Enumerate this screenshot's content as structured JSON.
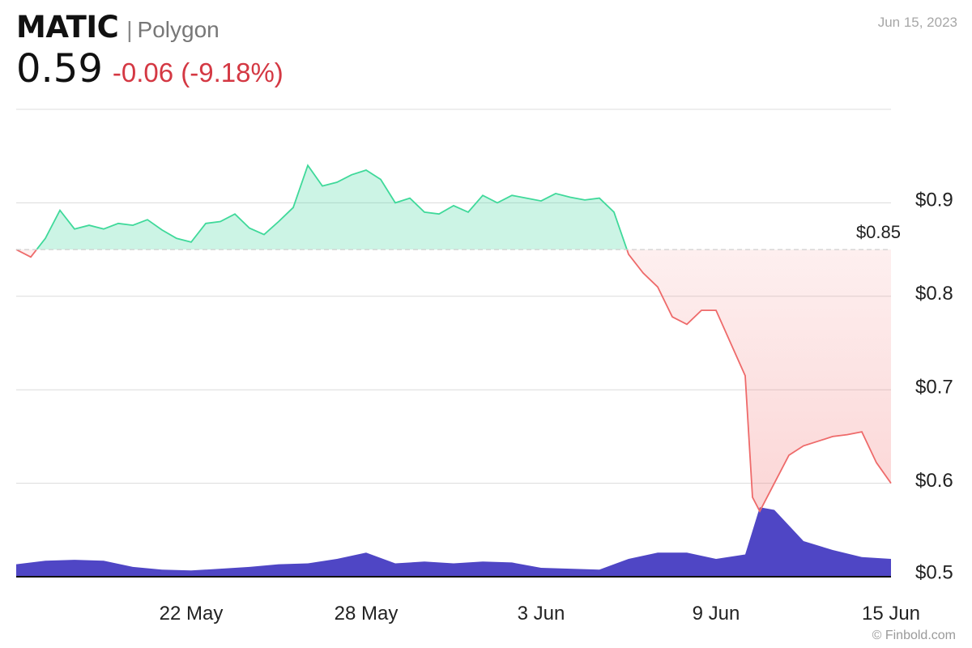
{
  "header": {
    "symbol": "MATIC",
    "separator": "|",
    "name": "Polygon",
    "price": "0.59",
    "change": "-0.06 (-9.18%)",
    "date": "Jun 15, 2023",
    "credit": "© Finbold.com"
  },
  "chart_data": {
    "type": "line",
    "ylim": [
      0.5,
      1.0
    ],
    "y_ticks": [
      {
        "value": 0.9,
        "label": "$0.9"
      },
      {
        "value": 0.8,
        "label": "$0.8"
      },
      {
        "value": 0.7,
        "label": "$0.7"
      },
      {
        "value": 0.6,
        "label": "$0.6"
      },
      {
        "value": 0.5,
        "label": "$0.5"
      }
    ],
    "x_range": [
      "2023-05-16",
      "2023-06-15"
    ],
    "x_ticks": [
      {
        "date": "2023-05-22",
        "label": "22 May"
      },
      {
        "date": "2023-05-28",
        "label": "28 May"
      },
      {
        "date": "2023-06-03",
        "label": "3 Jun"
      },
      {
        "date": "2023-06-09",
        "label": "9 Jun"
      },
      {
        "date": "2023-06-15",
        "label": "15 Jun"
      }
    ],
    "reference": {
      "value": 0.85,
      "label": "$0.85"
    },
    "price": {
      "x": [
        "2023-05-16",
        "2023-05-16 12:00",
        "2023-05-17",
        "2023-05-17 12:00",
        "2023-05-18",
        "2023-05-18 12:00",
        "2023-05-19",
        "2023-05-19 12:00",
        "2023-05-20",
        "2023-05-20 12:00",
        "2023-05-21",
        "2023-05-21 12:00",
        "2023-05-22",
        "2023-05-22 12:00",
        "2023-05-23",
        "2023-05-23 12:00",
        "2023-05-24",
        "2023-05-24 12:00",
        "2023-05-25",
        "2023-05-25 12:00",
        "2023-05-26",
        "2023-05-26 12:00",
        "2023-05-27",
        "2023-05-27 12:00",
        "2023-05-28",
        "2023-05-28 12:00",
        "2023-05-29",
        "2023-05-29 12:00",
        "2023-05-30",
        "2023-05-30 12:00",
        "2023-05-31",
        "2023-05-31 12:00",
        "2023-06-01",
        "2023-06-01 12:00",
        "2023-06-02",
        "2023-06-02 12:00",
        "2023-06-03",
        "2023-06-03 12:00",
        "2023-06-04",
        "2023-06-04 12:00",
        "2023-06-05",
        "2023-06-05 12:00",
        "2023-06-06",
        "2023-06-06 12:00",
        "2023-06-07",
        "2023-06-07 12:00",
        "2023-06-08",
        "2023-06-08 12:00",
        "2023-06-09",
        "2023-06-09 12:00",
        "2023-06-10",
        "2023-06-10 06:00",
        "2023-06-10 12:00",
        "2023-06-11",
        "2023-06-11 12:00",
        "2023-06-12",
        "2023-06-12 12:00",
        "2023-06-13",
        "2023-06-13 12:00",
        "2023-06-14",
        "2023-06-14 12:00",
        "2023-06-15"
      ],
      "y": [
        0.85,
        0.842,
        0.862,
        0.892,
        0.872,
        0.876,
        0.872,
        0.878,
        0.876,
        0.882,
        0.871,
        0.862,
        0.858,
        0.878,
        0.88,
        0.888,
        0.873,
        0.866,
        0.88,
        0.895,
        0.94,
        0.918,
        0.922,
        0.93,
        0.935,
        0.925,
        0.9,
        0.905,
        0.89,
        0.888,
        0.897,
        0.89,
        0.908,
        0.9,
        0.908,
        0.905,
        0.902,
        0.91,
        0.906,
        0.903,
        0.905,
        0.89,
        0.845,
        0.825,
        0.81,
        0.778,
        0.77,
        0.785,
        0.785,
        0.75,
        0.715,
        0.585,
        0.57,
        0.6,
        0.63,
        0.64,
        0.645,
        0.65,
        0.652,
        0.655,
        0.622,
        0.6
      ]
    },
    "volume": {
      "x": [
        "2023-05-16",
        "2023-05-17",
        "2023-05-18",
        "2023-05-19",
        "2023-05-20",
        "2023-05-21",
        "2023-05-22",
        "2023-05-23",
        "2023-05-24",
        "2023-05-25",
        "2023-05-26",
        "2023-05-27",
        "2023-05-28",
        "2023-05-29",
        "2023-05-30",
        "2023-05-31",
        "2023-06-01",
        "2023-06-02",
        "2023-06-03",
        "2023-06-04",
        "2023-06-05",
        "2023-06-06",
        "2023-06-07",
        "2023-06-08",
        "2023-06-09",
        "2023-06-10",
        "2023-06-10 12:00",
        "2023-06-11",
        "2023-06-12",
        "2023-06-13",
        "2023-06-14",
        "2023-06-15"
      ],
      "y": [
        0.14,
        0.18,
        0.19,
        0.18,
        0.11,
        0.08,
        0.07,
        0.09,
        0.11,
        0.14,
        0.15,
        0.2,
        0.27,
        0.15,
        0.17,
        0.15,
        0.17,
        0.16,
        0.1,
        0.09,
        0.08,
        0.2,
        0.27,
        0.27,
        0.2,
        0.25,
        0.78,
        0.75,
        0.4,
        0.3,
        0.22,
        0.2
      ]
    }
  }
}
